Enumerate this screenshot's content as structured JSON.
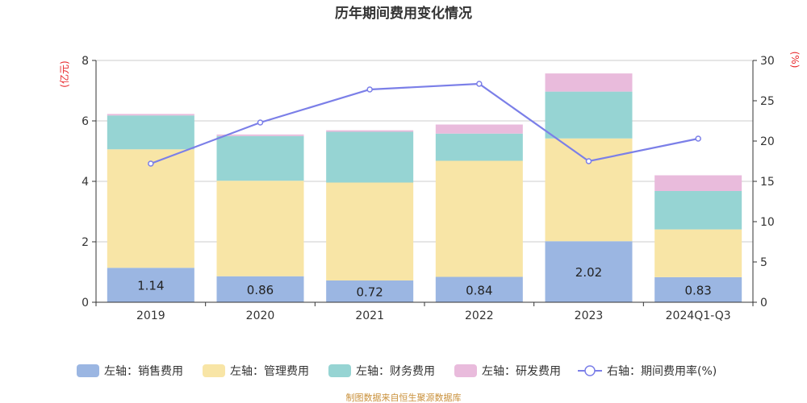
{
  "title": "历年期间费用变化情况",
  "footer": "制图数据来自恒生聚源数据库",
  "chart_data": {
    "type": "bar",
    "stacked": true,
    "categories": [
      "2019",
      "2020",
      "2021",
      "2022",
      "2023",
      "2024Q1-Q3"
    ],
    "left_axis": {
      "unit": "(亿元)",
      "range": [
        0,
        8
      ],
      "ticks": [
        0,
        2,
        4,
        6,
        8
      ]
    },
    "right_axis": {
      "unit": "(%)",
      "range": [
        0,
        30
      ],
      "ticks": [
        0,
        5,
        10,
        15,
        20,
        25,
        30
      ]
    },
    "series": [
      {
        "name": "左轴：销售费用",
        "type": "bar",
        "axis": "left",
        "color": "#9bb6e2",
        "values": [
          1.14,
          0.86,
          0.72,
          0.84,
          2.02,
          0.83
        ],
        "labels": [
          "1.14",
          "0.86",
          "0.72",
          "0.84",
          "2.02",
          "0.83"
        ]
      },
      {
        "name": "左轴：管理费用",
        "type": "bar",
        "axis": "left",
        "color": "#f8e5a6",
        "values": [
          3.92,
          3.16,
          3.24,
          3.84,
          3.4,
          1.58
        ]
      },
      {
        "name": "左轴：财务费用",
        "type": "bar",
        "axis": "left",
        "color": "#96d4d3",
        "values": [
          1.12,
          1.48,
          1.68,
          0.9,
          1.55,
          1.27
        ]
      },
      {
        "name": "左轴：研发费用",
        "type": "bar",
        "axis": "left",
        "color": "#e9bbdc",
        "values": [
          0.05,
          0.05,
          0.05,
          0.3,
          0.6,
          0.52
        ]
      },
      {
        "name": "右轴：期间费用率(%)",
        "type": "line",
        "axis": "right",
        "color": "#7b7fe8",
        "values": [
          17.2,
          22.3,
          26.4,
          27.1,
          17.5,
          20.3
        ]
      }
    ],
    "grid": true,
    "legend_position": "bottom"
  }
}
